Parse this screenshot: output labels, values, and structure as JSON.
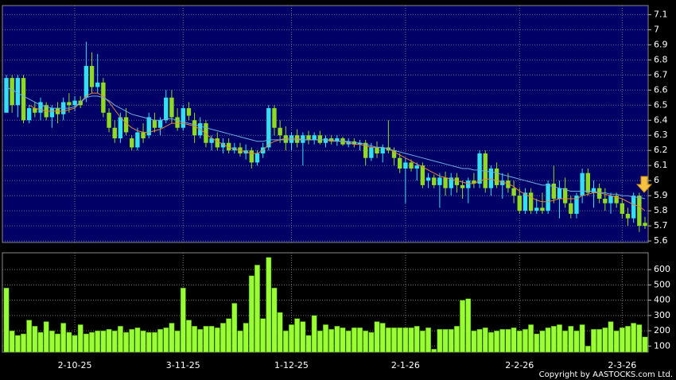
{
  "chart_data": [
    {
      "type": "candlestick",
      "ylim": [
        5.59,
        7.16
      ],
      "yticks": [
        5.6,
        5.7,
        5.8,
        5.9,
        6,
        6.1,
        6.2,
        6.3,
        6.4,
        6.5,
        6.6,
        6.7,
        6.8,
        6.9,
        7,
        7.1
      ],
      "grid": true,
      "up_color": "#33e0f0",
      "down_color": "#8fdc1e",
      "open": [
        6.45,
        6.68,
        6.5,
        6.68,
        6.4,
        6.48,
        6.45,
        6.5,
        6.42,
        6.48,
        6.44,
        6.52,
        6.5,
        6.53,
        6.55,
        6.76,
        6.62,
        6.65,
        6.45,
        6.35,
        6.28,
        6.42,
        6.28,
        6.22,
        6.32,
        6.3,
        6.4,
        6.35,
        6.4,
        6.55,
        6.42,
        6.35,
        6.48,
        6.4,
        6.3,
        6.38,
        6.25,
        6.28,
        6.22,
        6.25,
        6.2,
        6.22,
        6.18,
        6.2,
        6.12,
        6.18,
        6.22,
        6.48,
        6.35,
        6.3,
        6.25,
        6.3,
        6.25,
        6.3,
        6.27,
        6.3,
        6.25,
        6.28,
        6.26,
        6.28,
        6.24,
        6.26,
        6.24,
        6.25,
        6.15,
        6.22,
        6.18,
        6.22,
        6.2,
        6.15,
        6.08,
        6.12,
        6.08,
        6.1,
        6.0,
        6.02,
        5.97,
        6.02,
        5.95,
        6.02,
        5.97,
        5.95,
        6.0,
        5.98,
        6.18,
        5.95,
        6.08,
        5.97,
        6.0,
        5.95,
        5.9,
        5.8,
        5.92,
        5.8,
        5.82,
        5.8,
        5.98,
        5.88,
        5.95,
        5.85,
        5.78,
        5.9,
        6.05,
        5.92,
        5.95,
        5.88,
        5.85,
        5.9,
        5.85,
        5.78,
        5.75,
        5.9,
        5.72
      ],
      "high": [
        6.7,
        6.7,
        6.7,
        6.7,
        6.5,
        6.52,
        6.55,
        6.52,
        6.5,
        6.52,
        6.55,
        6.58,
        6.56,
        6.56,
        6.92,
        6.85,
        6.84,
        6.68,
        6.48,
        6.4,
        6.45,
        6.48,
        6.3,
        6.35,
        6.38,
        6.45,
        6.45,
        6.42,
        6.6,
        6.6,
        6.48,
        6.5,
        6.52,
        6.45,
        6.42,
        6.4,
        6.3,
        6.32,
        6.28,
        6.28,
        6.25,
        6.25,
        6.24,
        6.22,
        6.2,
        6.25,
        6.5,
        6.5,
        6.4,
        6.36,
        6.32,
        6.34,
        6.32,
        6.33,
        6.32,
        6.33,
        6.3,
        6.3,
        6.3,
        6.29,
        6.28,
        6.28,
        6.27,
        6.27,
        6.25,
        6.26,
        6.24,
        6.4,
        6.22,
        6.18,
        6.15,
        6.14,
        6.12,
        6.12,
        6.05,
        6.04,
        6.05,
        6.06,
        6.05,
        6.05,
        6.0,
        6.02,
        6.05,
        6.2,
        6.2,
        6.1,
        6.12,
        6.05,
        6.05,
        6.0,
        5.95,
        5.95,
        5.95,
        5.88,
        5.92,
        6.0,
        6.1,
        6.0,
        6.02,
        5.9,
        5.92,
        6.08,
        6.08,
        6.0,
        5.98,
        5.95,
        5.92,
        5.92,
        5.88,
        5.82,
        5.92,
        5.92,
        5.76
      ],
      "low": [
        6.45,
        6.45,
        6.42,
        6.38,
        6.38,
        6.42,
        6.4,
        6.4,
        6.35,
        6.38,
        6.4,
        6.45,
        6.46,
        6.48,
        6.52,
        6.58,
        6.58,
        6.42,
        6.32,
        6.25,
        6.25,
        6.3,
        6.2,
        6.2,
        6.25,
        6.28,
        6.32,
        6.3,
        6.38,
        6.38,
        6.33,
        6.33,
        6.4,
        6.25,
        6.28,
        6.22,
        6.2,
        6.2,
        6.18,
        6.18,
        6.18,
        6.16,
        6.14,
        6.08,
        6.1,
        6.15,
        6.2,
        6.3,
        6.25,
        6.2,
        6.2,
        6.22,
        6.1,
        6.24,
        6.24,
        6.24,
        6.22,
        6.24,
        6.23,
        6.23,
        6.22,
        6.22,
        6.2,
        6.1,
        6.13,
        6.15,
        6.12,
        6.18,
        6.1,
        6.05,
        5.85,
        6.06,
        6.0,
        5.95,
        5.95,
        5.95,
        5.82,
        5.9,
        5.9,
        5.92,
        5.88,
        5.85,
        5.95,
        5.95,
        5.92,
        5.9,
        5.95,
        5.88,
        5.92,
        5.85,
        5.78,
        5.78,
        5.78,
        5.78,
        5.78,
        5.78,
        5.85,
        5.75,
        5.82,
        5.75,
        5.75,
        5.85,
        5.9,
        5.82,
        5.85,
        5.8,
        5.78,
        5.82,
        5.75,
        5.7,
        5.72,
        5.66,
        5.68
      ],
      "close": [
        6.68,
        6.5,
        6.68,
        6.4,
        6.48,
        6.45,
        6.52,
        6.42,
        6.48,
        6.44,
        6.52,
        6.5,
        6.53,
        6.5,
        6.76,
        6.62,
        6.65,
        6.45,
        6.35,
        6.28,
        6.42,
        6.32,
        6.22,
        6.32,
        6.28,
        6.42,
        6.35,
        6.4,
        6.55,
        6.42,
        6.35,
        6.48,
        6.43,
        6.3,
        6.38,
        6.25,
        6.28,
        6.22,
        6.25,
        6.2,
        6.22,
        6.18,
        6.2,
        6.12,
        6.18,
        6.22,
        6.48,
        6.35,
        6.3,
        6.25,
        6.3,
        6.25,
        6.3,
        6.27,
        6.3,
        6.25,
        6.28,
        6.26,
        6.28,
        6.24,
        6.26,
        6.24,
        6.25,
        6.15,
        6.22,
        6.18,
        6.22,
        6.2,
        6.15,
        6.08,
        6.12,
        6.08,
        6.1,
        5.97,
        6.02,
        5.97,
        6.02,
        5.95,
        6.02,
        5.97,
        5.95,
        6.0,
        5.98,
        6.18,
        5.95,
        6.08,
        5.97,
        6.0,
        5.95,
        5.9,
        5.8,
        5.92,
        5.8,
        5.82,
        5.8,
        5.98,
        5.88,
        5.95,
        5.85,
        5.78,
        5.9,
        6.05,
        5.92,
        5.95,
        5.88,
        5.85,
        5.9,
        5.85,
        5.78,
        5.75,
        5.9,
        5.7,
        5.7
      ],
      "lines": [
        {
          "color": "#e0843a",
          "values": [
            null,
            null,
            null,
            null,
            6.5,
            6.48,
            6.47,
            6.46,
            6.46,
            6.46,
            6.46,
            6.47,
            6.48,
            6.52,
            6.56,
            6.58,
            6.58,
            6.56,
            6.52,
            6.47,
            6.42,
            6.38,
            6.35,
            6.33,
            6.32,
            6.32,
            6.33,
            6.34,
            6.36,
            6.38,
            6.38,
            6.38,
            6.37,
            6.36,
            6.34,
            6.31,
            6.28,
            6.26,
            6.24,
            6.22,
            6.21,
            6.2,
            6.19,
            6.18,
            6.18,
            6.2,
            6.24,
            6.26,
            6.27,
            6.28,
            6.28,
            6.28,
            6.27,
            6.27,
            6.27,
            6.27,
            6.27,
            6.26,
            6.26,
            6.26,
            6.25,
            6.24,
            6.24,
            6.23,
            6.22,
            6.22,
            6.22,
            6.21,
            6.19,
            6.17,
            6.15,
            6.13,
            6.11,
            6.09,
            6.07,
            6.05,
            6.03,
            6.02,
            6.01,
            6.0,
            5.99,
            5.98,
            5.98,
            6.0,
            6.01,
            6.01,
            6.0,
            5.99,
            5.98,
            5.96,
            5.93,
            5.91,
            5.89,
            5.87,
            5.86,
            5.86,
            5.87,
            5.88,
            5.88,
            5.88,
            5.88,
            5.9,
            5.91,
            5.92,
            5.92,
            5.91,
            5.9,
            5.89,
            5.88,
            5.86,
            5.84,
            5.83,
            5.8
          ]
        },
        {
          "color": "#6aaee0",
          "values": [
            6.62,
            6.6,
            6.58,
            6.56,
            6.54,
            6.52,
            6.5,
            6.49,
            6.48,
            6.48,
            6.48,
            6.48,
            6.49,
            6.52,
            6.55,
            6.56,
            6.56,
            6.55,
            6.53,
            6.5,
            6.48,
            6.46,
            6.44,
            6.43,
            6.42,
            6.41,
            6.4,
            6.4,
            6.41,
            6.41,
            6.4,
            6.39,
            6.38,
            6.37,
            6.36,
            6.35,
            6.34,
            6.33,
            6.32,
            6.31,
            6.3,
            6.29,
            6.28,
            6.27,
            6.26,
            6.26,
            6.27,
            6.27,
            6.27,
            6.27,
            6.27,
            6.27,
            6.27,
            6.27,
            6.27,
            6.27,
            6.27,
            6.27,
            6.26,
            6.26,
            6.26,
            6.25,
            6.25,
            6.24,
            6.23,
            6.22,
            6.22,
            6.21,
            6.2,
            6.19,
            6.18,
            6.17,
            6.16,
            6.15,
            6.14,
            6.13,
            6.12,
            6.11,
            6.1,
            6.09,
            6.08,
            6.08,
            6.07,
            6.07,
            6.06,
            6.06,
            6.05,
            6.04,
            6.03,
            6.02,
            6.01,
            6.0,
            5.99,
            5.98,
            5.97,
            5.97,
            5.96,
            5.95,
            5.94,
            5.93,
            5.93,
            5.93,
            5.93,
            5.93,
            5.92,
            5.92,
            5.91,
            5.91,
            5.9,
            5.9,
            5.89,
            5.89,
            5.88
          ]
        }
      ]
    },
    {
      "type": "bar",
      "ylim": [
        60,
        710
      ],
      "yticks": [
        100,
        200,
        300,
        400,
        500,
        600
      ],
      "grid": true,
      "color": "#99ff33",
      "categories": [
        null,
        null,
        null,
        null,
        null,
        null,
        null,
        null,
        null,
        null,
        null,
        null,
        "2-10-25",
        null,
        null,
        null,
        null,
        null,
        null,
        null,
        null,
        null,
        null,
        null,
        null,
        null,
        null,
        null,
        null,
        null,
        null,
        "3-11-25",
        null,
        null,
        null,
        null,
        null,
        null,
        null,
        null,
        null,
        null,
        null,
        null,
        null,
        null,
        null,
        null,
        null,
        null,
        "1-12-25",
        null,
        null,
        null,
        null,
        null,
        null,
        null,
        null,
        null,
        null,
        null,
        null,
        null,
        null,
        null,
        null,
        null,
        null,
        null,
        "2-1-26",
        null,
        null,
        null,
        null,
        null,
        null,
        null,
        null,
        null,
        null,
        null,
        null,
        null,
        null,
        null,
        null,
        null,
        null,
        null,
        "2-2-26",
        null,
        null,
        null,
        null,
        null,
        null,
        null,
        null,
        null,
        null,
        null,
        null,
        null,
        null,
        null,
        null,
        null,
        "2-3-26",
        null,
        null,
        null,
        null
      ],
      "values": [
        480,
        200,
        170,
        180,
        270,
        230,
        190,
        260,
        200,
        180,
        250,
        190,
        170,
        240,
        180,
        190,
        200,
        200,
        210,
        200,
        230,
        190,
        210,
        220,
        200,
        190,
        190,
        210,
        220,
        250,
        200,
        480,
        270,
        230,
        210,
        230,
        230,
        220,
        250,
        280,
        380,
        200,
        250,
        560,
        630,
        280,
        680,
        480,
        320,
        200,
        240,
        280,
        260,
        170,
        300,
        200,
        240,
        210,
        230,
        220,
        200,
        220,
        220,
        200,
        190,
        260,
        250,
        220,
        220,
        220,
        220,
        220,
        230,
        200,
        220,
        80,
        210,
        210,
        210,
        230,
        400,
        410,
        200,
        210,
        220,
        190,
        200,
        210,
        210,
        220,
        200,
        210,
        240,
        180,
        200,
        220,
        230,
        240,
        200,
        230,
        200,
        240,
        100,
        210,
        210,
        220,
        260,
        200,
        220,
        230,
        250,
        240,
        160
      ]
    },
    {
      "type": "text",
      "copyright": "Copyright by AASTOCKS.com Ltd."
    }
  ]
}
